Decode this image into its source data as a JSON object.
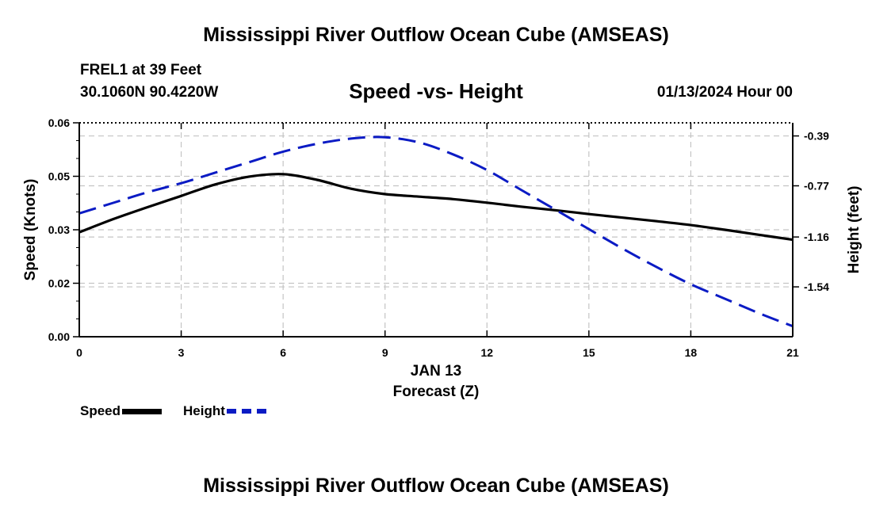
{
  "header": {
    "title": "Mississippi River Outflow Ocean Cube (AMSEAS)",
    "title_repeat": "Mississippi River Outflow Ocean Cube (AMSEAS)",
    "station": "FREL1 at 39 Feet",
    "coords": "30.1060N  90.4220W",
    "run_time": "01/13/2024 Hour 00"
  },
  "chart_data": {
    "type": "line",
    "title": "Speed -vs- Height",
    "xlabel": "Forecast (Z)",
    "date_label": "JAN 13",
    "ylabel": "Speed (Knots)",
    "ylabel_right": "Height (feet)",
    "xlim": [
      0,
      21
    ],
    "ylim": [
      0,
      0.06
    ],
    "ylim_right": [
      -1.92,
      -0.29
    ],
    "x_ticks": [
      0,
      3,
      6,
      9,
      12,
      15,
      18,
      21
    ],
    "x_tick_labels": [
      "0",
      "3",
      "6",
      "9",
      "12",
      "15",
      "18",
      "21"
    ],
    "y_ticks": [
      0.0,
      0.015,
      0.03,
      0.045,
      0.06
    ],
    "y_tick_labels": [
      "0.00",
      "0.02",
      "0.03",
      "0.05",
      "0.06"
    ],
    "y_right_ticks": [
      -0.39,
      -0.77,
      -1.16,
      -1.54
    ],
    "y_right_tick_labels": [
      "-0.39",
      "-0.77",
      "-1.16",
      "-1.54"
    ],
    "grid": true,
    "series": [
      {
        "name": "Speed",
        "axis": "left",
        "color": "#000000",
        "style": "solid",
        "x": [
          0,
          1,
          2,
          3,
          4,
          5,
          6,
          7,
          8,
          9,
          10,
          11,
          12,
          13,
          14,
          15,
          16,
          17,
          18,
          19,
          20,
          21
        ],
        "values": [
          0.0293,
          0.033,
          0.0363,
          0.0395,
          0.0427,
          0.0449,
          0.0456,
          0.044,
          0.0415,
          0.04,
          0.0393,
          0.0386,
          0.0376,
          0.0365,
          0.0355,
          0.0344,
          0.0334,
          0.0324,
          0.0313,
          0.03,
          0.0286,
          0.0272
        ]
      },
      {
        "name": "Height",
        "axis": "right",
        "color": "#0b1bc4",
        "style": "dashed",
        "x": [
          0,
          1,
          2,
          3,
          4,
          5,
          6,
          7,
          8,
          9,
          10,
          11,
          12,
          13,
          14,
          15,
          16,
          17,
          18,
          19,
          20,
          21
        ],
        "values": [
          -0.98,
          -0.9,
          -0.82,
          -0.75,
          -0.67,
          -0.59,
          -0.51,
          -0.45,
          -0.41,
          -0.4,
          -0.44,
          -0.53,
          -0.65,
          -0.8,
          -0.95,
          -1.1,
          -1.25,
          -1.39,
          -1.52,
          -1.63,
          -1.74,
          -1.84
        ]
      }
    ],
    "legend": [
      {
        "label": "Speed",
        "color": "#000000",
        "style": "solid"
      },
      {
        "label": "Height",
        "color": "#0b1bc4",
        "style": "dashed"
      }
    ]
  }
}
